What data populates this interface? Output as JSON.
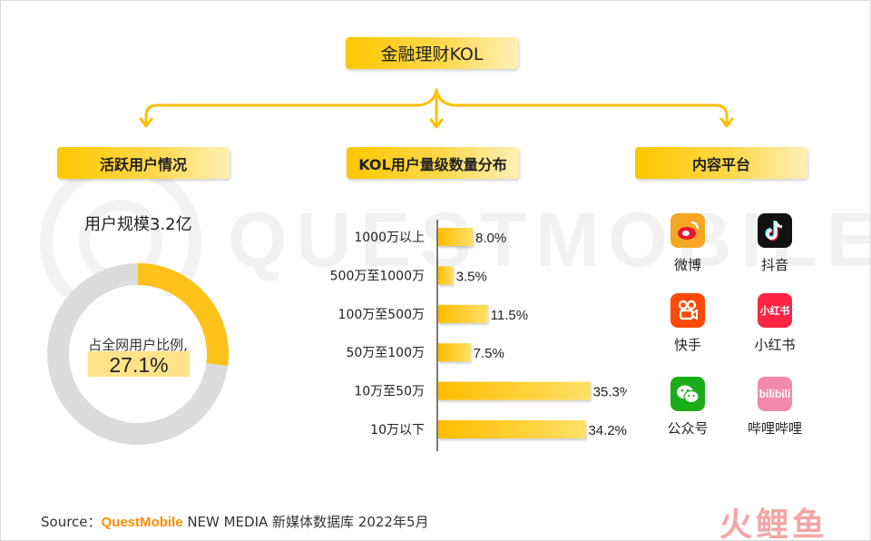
{
  "title": "金融理财KOL",
  "sections": {
    "active_users": "活跃用户情况",
    "kol_distribution": "KOL用户量级数量分布",
    "platforms": "内容平台"
  },
  "users": {
    "scale_label": "用户规模3.2亿",
    "share_label": "占全网用户比例,",
    "share_value": "27.1%",
    "share_fraction": 0.271
  },
  "chart_data": {
    "type": "bar",
    "orientation": "horizontal",
    "categories": [
      "1000万以上",
      "500万至1000万",
      "100万至500万",
      "50万至100万",
      "10万至50万",
      "10万以下"
    ],
    "values": [
      8.0,
      3.5,
      11.5,
      7.5,
      35.3,
      34.2
    ],
    "value_labels": [
      "8.0%",
      "3.5%",
      "11.5%",
      "7.5%",
      "35.3%",
      "34.2%"
    ],
    "unit": "%"
  },
  "platforms": [
    {
      "name": "微博",
      "icon": "weibo-icon",
      "color": "#f6a623"
    },
    {
      "name": "抖音",
      "icon": "douyin-icon",
      "color": "#111111"
    },
    {
      "name": "快手",
      "icon": "kuaishou-icon",
      "color": "#ff4906"
    },
    {
      "name": "小红书",
      "icon": "xiaohongshu-icon",
      "color": "#ff2442"
    },
    {
      "name": "公众号",
      "icon": "wechat-icon",
      "color": "#1aad19"
    },
    {
      "name": "哔哩哔哩",
      "icon": "bilibili-icon",
      "color": "#f28bab"
    }
  ],
  "source": {
    "prefix": "Source：",
    "brand": "QuestMobile",
    "rest": " NEW MEDIA 新媒体数据库  2022年5月"
  },
  "watermark": "QUESTMOBILE",
  "logo": "火鲤鱼",
  "colors": {
    "accent": "#ffc400",
    "track": "#dcdcdc"
  }
}
